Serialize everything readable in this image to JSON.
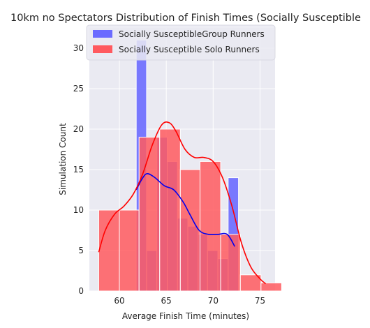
{
  "chart_data": {
    "type": "bar",
    "title": "10km no Spectators Distribution of Finish Times (Socially Susceptible",
    "xlabel": "Average Finish Time (minutes)",
    "ylabel": "Simulation Count",
    "xlim": [
      56.8,
      76.6
    ],
    "ylim": [
      0,
      32.5
    ],
    "xticks": [
      60,
      65,
      70,
      75
    ],
    "yticks": [
      0,
      5,
      10,
      15,
      20,
      25,
      30
    ],
    "grid": true,
    "legend_position": "top",
    "series": [
      {
        "name": "Socially SusceptibleGroup Runners",
        "color": "#6b6bff",
        "bins": [
          {
            "x0": 61.8,
            "x1": 62.9,
            "count": 31
          },
          {
            "x0": 62.9,
            "x1": 64.0,
            "count": 5
          },
          {
            "x0": 64.0,
            "x1": 65.1,
            "count": 19
          },
          {
            "x0": 65.1,
            "x1": 66.2,
            "count": 16
          },
          {
            "x0": 66.2,
            "x1": 67.3,
            "count": 9
          },
          {
            "x0": 67.3,
            "x1": 68.4,
            "count": 8
          },
          {
            "x0": 68.4,
            "x1": 69.4,
            "count": 7
          },
          {
            "x0": 69.4,
            "x1": 70.5,
            "count": 5
          },
          {
            "x0": 70.5,
            "x1": 71.6,
            "count": 4
          },
          {
            "x0": 71.6,
            "x1": 72.7,
            "count": 14
          }
        ],
        "kde_line": {
          "x": [
            61.8,
            62.5,
            63.0,
            63.8,
            64.8,
            65.8,
            66.8,
            67.5,
            68.5,
            69.5,
            70.5,
            71.5,
            72.3
          ],
          "y": [
            12.5,
            14.0,
            14.5,
            14.0,
            13.0,
            12.5,
            11.0,
            9.5,
            7.5,
            7.0,
            7.0,
            7.0,
            5.5
          ]
        }
      },
      {
        "name": "Socially Susceptible Solo Runners",
        "color": "#ff5a5f",
        "bins": [
          {
            "x0": 57.8,
            "x1": 60.0,
            "count": 10
          },
          {
            "x0": 60.0,
            "x1": 62.1,
            "count": 10
          },
          {
            "x0": 62.1,
            "x1": 64.3,
            "count": 19
          },
          {
            "x0": 64.3,
            "x1": 66.5,
            "count": 20
          },
          {
            "x0": 66.5,
            "x1": 68.6,
            "count": 15
          },
          {
            "x0": 68.6,
            "x1": 70.8,
            "count": 16
          },
          {
            "x0": 70.8,
            "x1": 72.9,
            "count": 7
          },
          {
            "x0": 72.9,
            "x1": 75.1,
            "count": 2
          },
          {
            "x0": 75.1,
            "x1": 77.3,
            "count": 1
          }
        ],
        "kde_line": {
          "x": [
            57.8,
            58.5,
            59.5,
            60.5,
            61.5,
            62.5,
            63.5,
            64.5,
            65.3,
            66.0,
            67.0,
            68.0,
            69.0,
            70.0,
            71.0,
            72.0,
            73.0,
            74.0,
            75.0,
            75.6
          ],
          "y": [
            4.8,
            7.5,
            9.5,
            10.5,
            12.0,
            14.5,
            18.0,
            20.5,
            20.8,
            19.8,
            17.5,
            16.5,
            16.5,
            16.0,
            14.0,
            10.5,
            6.0,
            3.0,
            1.5,
            0.9
          ]
        }
      }
    ]
  }
}
